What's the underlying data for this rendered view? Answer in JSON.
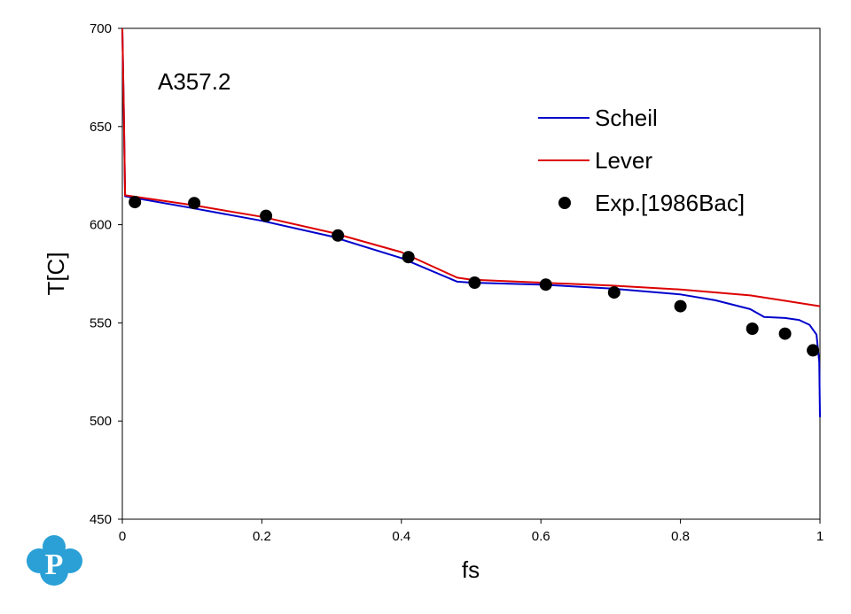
{
  "chart_data": {
    "type": "line",
    "annotation": "A357.2",
    "xlabel": "fs",
    "ylabel": "T[C]",
    "xlim": [
      0,
      1
    ],
    "ylim": [
      450,
      700
    ],
    "x_ticks": [
      "0",
      "0.2",
      "0.4",
      "0.6",
      "0.8",
      "1"
    ],
    "y_ticks": [
      "450",
      "500",
      "550",
      "600",
      "650",
      "700"
    ],
    "x_tick_values": [
      0,
      0.2,
      0.4,
      0.6,
      0.8,
      1
    ],
    "y_tick_values": [
      450,
      500,
      550,
      600,
      650,
      700
    ],
    "grid": false,
    "legend_position": "top-right",
    "series": [
      {
        "name": "Scheil",
        "kind": "line",
        "color": "#0000cc",
        "x": [
          0.0,
          0.002,
          0.004,
          0.1,
          0.2,
          0.3,
          0.4,
          0.48,
          0.5,
          0.6,
          0.7,
          0.8,
          0.85,
          0.9,
          0.92,
          0.95,
          0.97,
          0.985,
          0.995,
          0.999,
          1.0
        ],
        "y": [
          700,
          660,
          614.5,
          608.5,
          602,
          594,
          583,
          571,
          570.5,
          569.5,
          567.5,
          564.5,
          561.5,
          557,
          553,
          552.5,
          551.5,
          549,
          544,
          530,
          502
        ]
      },
      {
        "name": "Lever",
        "kind": "line",
        "color": "#dd0000",
        "x": [
          0.0,
          0.002,
          0.004,
          0.1,
          0.2,
          0.3,
          0.4,
          0.48,
          0.5,
          0.6,
          0.7,
          0.8,
          0.9,
          1.0
        ],
        "y": [
          700,
          660,
          615,
          610,
          604,
          596,
          586,
          573,
          572,
          570.5,
          569,
          567,
          564,
          558.5
        ]
      },
      {
        "name": "Exp.[1986Bac]",
        "kind": "scatter",
        "color": "#000000",
        "x": [
          0.018,
          0.103,
          0.206,
          0.309,
          0.41,
          0.505,
          0.607,
          0.705,
          0.8,
          0.903,
          0.95,
          0.99
        ],
        "y": [
          611.5,
          611,
          604.5,
          594.5,
          583.5,
          570.5,
          569.5,
          565.5,
          558.5,
          547,
          544.5,
          536
        ]
      }
    ]
  },
  "logo": {
    "letter": "P",
    "color": "#2aa0d6"
  }
}
